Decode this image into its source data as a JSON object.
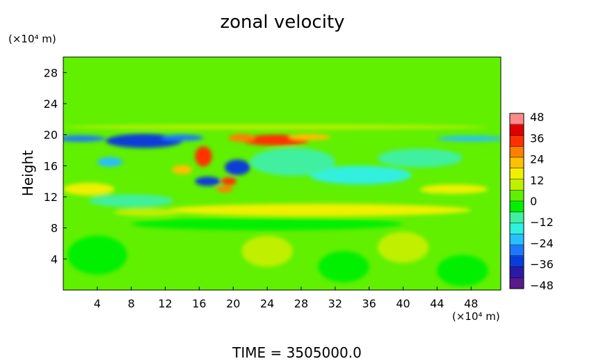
{
  "chart_data": {
    "type": "heatmap",
    "title": "zonal velocity",
    "ylabel": "Height",
    "y_unit": "(×10⁴ m)",
    "x_unit": "(×10⁴ m)",
    "footer": "TIME  =  3505000.0",
    "x_range": [
      0,
      51.5
    ],
    "y_range": [
      0,
      30
    ],
    "x_ticks": [
      4,
      8,
      12,
      16,
      20,
      24,
      28,
      32,
      36,
      40,
      44,
      48
    ],
    "y_ticks": [
      4,
      8,
      12,
      16,
      20,
      24,
      28
    ],
    "colorbar": {
      "range": [
        -50,
        50
      ],
      "ticks": [
        48,
        36,
        24,
        12,
        0,
        -12,
        -24,
        -36,
        -48
      ],
      "tick_labels": [
        "48",
        "36",
        "24",
        "12",
        "0",
        "−12",
        "−24",
        "−36",
        "−48"
      ],
      "colors": [
        "#5a1a8c",
        "#2a1aa8",
        "#0a3cd8",
        "#1e78ff",
        "#28c0ff",
        "#30f0e0",
        "#40f0a0",
        "#00f000",
        "#60f000",
        "#c0f000",
        "#f0f000",
        "#ffc000",
        "#ff8000",
        "#ff3000",
        "#e00000",
        "#ff8a8a"
      ]
    },
    "features": [
      {
        "x": 9.5,
        "y": 19.2,
        "rx": 4.5,
        "ry": 0.9,
        "value": -36
      },
      {
        "x": 2.0,
        "y": 19.5,
        "rx": 3.0,
        "ry": 0.4,
        "value": -30
      },
      {
        "x": 14.0,
        "y": 19.6,
        "rx": 2.5,
        "ry": 0.4,
        "value": -30
      },
      {
        "x": 48.0,
        "y": 19.5,
        "rx": 4.0,
        "ry": 0.35,
        "value": -22
      },
      {
        "x": 25.0,
        "y": 19.3,
        "rx": 4.0,
        "ry": 0.7,
        "value": 34
      },
      {
        "x": 21.0,
        "y": 19.6,
        "rx": 1.6,
        "ry": 0.5,
        "value": 30
      },
      {
        "x": 29.0,
        "y": 19.7,
        "rx": 2.5,
        "ry": 0.4,
        "value": 24
      },
      {
        "x": 16.5,
        "y": 17.2,
        "rx": 1.0,
        "ry": 1.3,
        "value": 36
      },
      {
        "x": 20.5,
        "y": 15.8,
        "rx": 1.5,
        "ry": 1.0,
        "value": -36
      },
      {
        "x": 19.5,
        "y": 14.0,
        "rx": 0.9,
        "ry": 0.5,
        "value": 36
      },
      {
        "x": 17.0,
        "y": 14.0,
        "rx": 1.5,
        "ry": 0.6,
        "value": -36
      },
      {
        "x": 19.0,
        "y": 13.0,
        "rx": 1.0,
        "ry": 0.4,
        "value": 30
      },
      {
        "x": 14.0,
        "y": 15.5,
        "rx": 1.2,
        "ry": 0.6,
        "value": 24
      },
      {
        "x": 5.5,
        "y": 16.5,
        "rx": 1.5,
        "ry": 0.6,
        "value": -20
      },
      {
        "x": 30.0,
        "y": 10.3,
        "rx": 18.0,
        "ry": 0.8,
        "value": 18
      },
      {
        "x": 10.0,
        "y": 10.0,
        "rx": 4.0,
        "ry": 0.5,
        "value": 12
      },
      {
        "x": 35.0,
        "y": 14.8,
        "rx": 6.0,
        "ry": 1.2,
        "value": -16
      },
      {
        "x": 27.0,
        "y": 16.5,
        "rx": 5.0,
        "ry": 1.8,
        "value": -12
      },
      {
        "x": 46.0,
        "y": 13.0,
        "rx": 4.0,
        "ry": 0.6,
        "value": 18
      },
      {
        "x": 42.0,
        "y": 17.0,
        "rx": 5.0,
        "ry": 1.2,
        "value": -10
      },
      {
        "x": 3.0,
        "y": 13.0,
        "rx": 3.0,
        "ry": 0.8,
        "value": 14
      },
      {
        "x": 8.0,
        "y": 11.5,
        "rx": 5.0,
        "ry": 0.8,
        "value": -10
      },
      {
        "x": 24.0,
        "y": 8.5,
        "rx": 16.0,
        "ry": 0.8,
        "value": -6
      },
      {
        "x": 25.0,
        "y": 21.0,
        "rx": 25.0,
        "ry": 0.3,
        "value": 8
      },
      {
        "x": 34.0,
        "y": 12.3,
        "rx": 10.0,
        "ry": 0.6,
        "value": 6
      },
      {
        "x": 40.0,
        "y": 5.5,
        "rx": 3.0,
        "ry": 2.0,
        "value": 8
      },
      {
        "x": 24.0,
        "y": 5.0,
        "rx": 3.0,
        "ry": 2.0,
        "value": 7
      },
      {
        "x": 4.0,
        "y": 4.5,
        "rx": 3.5,
        "ry": 2.5,
        "value": -5
      },
      {
        "x": 33.0,
        "y": 3.0,
        "rx": 3.0,
        "ry": 2.0,
        "value": -6
      },
      {
        "x": 47.0,
        "y": 2.5,
        "rx": 3.0,
        "ry": 2.0,
        "value": -5
      },
      {
        "x": 14.0,
        "y": 5.5,
        "rx": 2.5,
        "ry": 1.5,
        "value": 6
      }
    ]
  }
}
